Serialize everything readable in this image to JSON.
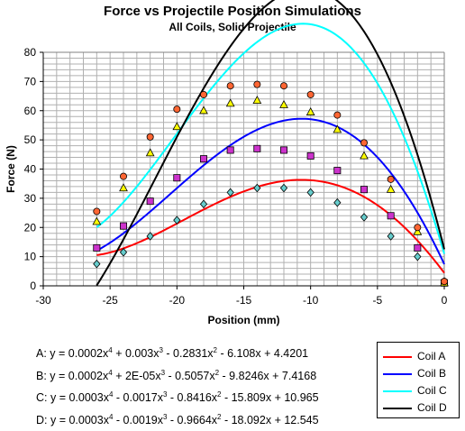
{
  "chart_data": {
    "type": "scatter",
    "title": "Force vs Projectile Position Simulations",
    "subtitle": "All Coils, Solid Projectile",
    "xlabel": "Position (mm)",
    "ylabel": "Force (N)",
    "xlim": [
      -30,
      0
    ],
    "ylim": [
      0,
      80
    ],
    "x_ticks": [
      "-30",
      "-25",
      "-20",
      "-15",
      "-10",
      "-5",
      "0"
    ],
    "y_ticks": [
      "0",
      "10",
      "20",
      "30",
      "40",
      "50",
      "60",
      "70",
      "80"
    ],
    "grid": true,
    "legend_position": "bottom-right",
    "series": [
      {
        "name": "Coil A",
        "color": "#ff0000",
        "marker": "diamond",
        "marker_color": "#66cccc",
        "x": [
          -26,
          -24,
          -22,
          -20,
          -18,
          -16,
          -14,
          -12,
          -10,
          -8,
          -6,
          -4,
          -2,
          0
        ],
        "y": [
          7.5,
          11.5,
          17,
          22.5,
          28,
          32,
          33.5,
          33.5,
          32,
          28.5,
          23.5,
          17,
          10,
          1.5
        ],
        "trend": {
          "c4": 0.0002,
          "c3": 0.003,
          "c2": -0.2831,
          "c1": -6.108,
          "c0": 4.4201
        },
        "equation": {
          "label": "A:",
          "terms": [
            "y = 0.0002x",
            "4",
            " + 0.003x",
            "3",
            " - 0.2831x",
            "2",
            " - 6.108x + 4.4201"
          ]
        }
      },
      {
        "name": "Coil B",
        "color": "#0000ff",
        "marker": "square",
        "marker_color": "#cc33cc",
        "x": [
          -26,
          -24,
          -22,
          -20,
          -18,
          -16,
          -14,
          -12,
          -10,
          -8,
          -6,
          -4,
          -2,
          0
        ],
        "y": [
          13,
          20.5,
          29,
          37,
          43.5,
          46.5,
          47,
          46.5,
          44.5,
          39.5,
          33,
          24,
          13,
          1
        ],
        "trend": {
          "c4": 0.0002,
          "c3": 2e-05,
          "c2": -0.5057,
          "c1": -9.8246,
          "c0": 7.4168
        },
        "equation": {
          "label": "B:",
          "terms": [
            "y = 0.0002x",
            "4",
            " + 2E-05x",
            "3",
            " - 0.5057x",
            "2",
            " - 9.8246x + 7.4168"
          ]
        }
      },
      {
        "name": "Coil C",
        "color": "#00ffff",
        "marker": "triangle",
        "marker_color": "#ffff00",
        "x": [
          -26,
          -24,
          -22,
          -20,
          -18,
          -16,
          -14,
          -12,
          -10,
          -8,
          -6,
          -4,
          -2,
          0
        ],
        "y": [
          22,
          33.5,
          45.5,
          54.5,
          60,
          62.5,
          63.5,
          62,
          59.5,
          53.5,
          44.5,
          33,
          18.5,
          1
        ],
        "trend": {
          "c4": 0.0003,
          "c3": -0.0017,
          "c2": -0.8416,
          "c1": -15.809,
          "c0": 10.965
        },
        "equation": {
          "label": "C:",
          "terms": [
            "y = 0.0003x",
            "4",
            " - 0.0017x",
            "3",
            " - 0.8416x",
            "2",
            " - 15.809x + 10.965"
          ]
        }
      },
      {
        "name": "Coil D",
        "color": "#000000",
        "marker": "circle",
        "marker_color": "#ff6633",
        "x": [
          -26,
          -24,
          -22,
          -20,
          -18,
          -16,
          -14,
          -12,
          -10,
          -8,
          -6,
          -4,
          -2,
          0
        ],
        "y": [
          25.5,
          37.5,
          51,
          60.5,
          65.5,
          68.5,
          69,
          68.5,
          65.5,
          58.5,
          49,
          36.5,
          20,
          1.5
        ],
        "trend": {
          "c4": 0.0003,
          "c3": -0.0019,
          "c2": -0.9664,
          "c1": -18.092,
          "c0": 12.545
        },
        "equation": {
          "label": "D:",
          "terms": [
            "y = 0.0003x",
            "4",
            " - 0.0019x",
            "3",
            " - 0.9664x",
            "2",
            " - 18.092x + 12.545"
          ]
        }
      }
    ]
  }
}
